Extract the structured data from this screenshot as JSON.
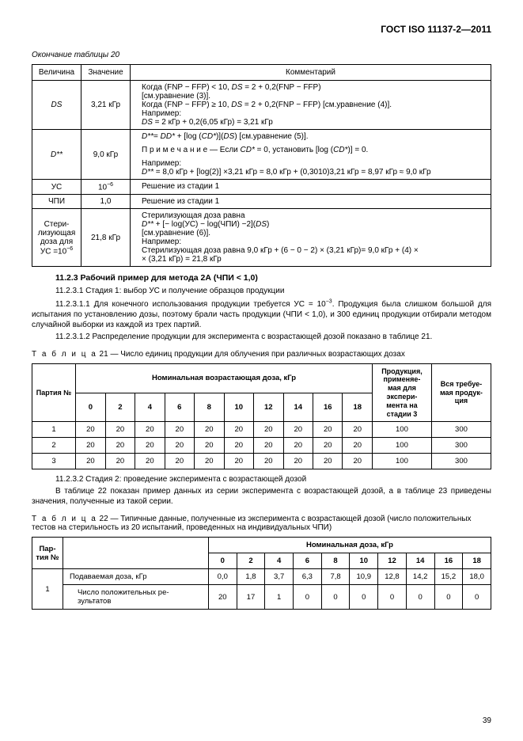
{
  "header": "ГОСТ ISO 11137-2—2011",
  "table20_end_caption": "Окончание таблицы 20",
  "table20": {
    "headers": [
      "Величина",
      "Значение",
      "Комментарий"
    ],
    "rows": [
      {
        "col1": "DS",
        "col1_style": "italic",
        "col2": "3,21 кГр",
        "col3_lines": [
          "Когда (FNP − FFP) < 10, <i>DS</i> = 2 + 0,2(FNP − FFP)",
          "[см.уравнение (3)].",
          "Когда (FNP − FFP) ≥ 10, <i>DS</i> = 2 + 0,2(FNP − FFP) [см.уравнение (4)].",
          "Например:",
          "<i>DS</i> = 2 кГр + 0,2(6,05 кГр) = 3,21 кГр"
        ]
      },
      {
        "col1": "D**",
        "col1_style": "italic",
        "col2": "9,0 кГр",
        "col3_lines": [
          "<i>D**</i>= <i>DD*</i> + [log (<i>CD*</i>)](<i>DS</i>) [см.уравнение (5)].",
          "",
          "П р и м е ч а н и е — Если <i>CD*</i> = 0, установить [log (<i>CD*</i>)] = 0.",
          "",
          "Например:",
          "<i>D**</i> = 8,0 кГр + [log(2)] ×3,21 кГр = 8,0 кГр + (0,3010)3,21 кГр = 8,97 кГр ≈ 9,0 кГр"
        ]
      },
      {
        "col1": "УС",
        "col2_html": "10<sup>−6</sup>",
        "col3_lines": [
          "Решение из стадии 1"
        ]
      },
      {
        "col1": "ЧПИ",
        "col2": "1,0",
        "col3_lines": [
          "Решение из стадии 1"
        ]
      },
      {
        "col1_html": "Стери-<br>лизующая<br>доза для<br>УС =10<sup>−6</sup>",
        "col2": "21,8 кГр",
        "col3_lines": [
          "Стерилизующая доза равна",
          "<i>D**</i> + [− log(УС) − log(ЧПИ) −2](<i>DS</i>)",
          "[см.уравнение (6)].",
          "Например:",
          "Стерилизующая доза равна 9,0 кГр + (6 − 0 − 2) × (3,21 кГр)= 9,0 кГр + (4) ×",
          "× (3,21 кГр) = 21,8 кГр"
        ]
      }
    ]
  },
  "sec_title": "11.2.3  Рабочий пример для метода 2А (ЧПИ < 1,0)",
  "p1": "11.2.3.1  Стадия 1: выбор УС и получение образцов продукции",
  "p2_html": "11.2.3.1.1  Для конечного использования продукции требуется УС = 10<sup>−3</sup>. Продукция была слишком большой для испытания по установлению дозы, поэтому брали часть продукции (ЧПИ < 1,0), и 300 единиц продукции отбирали методом случайной выборки из каждой из трех партий.",
  "p3": "11.2.3.1.2 Распределение продукции для эксперимента с возрастающей дозой показано в таблице 21.",
  "table21_caption_html": "<span class=\"sp\">Т а б л и ц а</span>  21 — Число единиц продукции для облучения при различных возрастающих дозах",
  "table21": {
    "top_header": "Номинальная возрастающая доза, кГр",
    "dose_cols": [
      "0",
      "2",
      "4",
      "6",
      "8",
      "10",
      "12",
      "14",
      "16",
      "18"
    ],
    "col_partiya": "Партия №",
    "col_stage3_html": "Продукция,<br>применяе-<br>мая для<br>экспери-<br>мента на<br>стадии 3",
    "col_total_html": "Вся требуе-<br>мая продук-<br>ция",
    "rows": [
      {
        "n": "1",
        "vals": [
          "20",
          "20",
          "20",
          "20",
          "20",
          "20",
          "20",
          "20",
          "20",
          "20"
        ],
        "s3": "100",
        "tot": "300"
      },
      {
        "n": "2",
        "vals": [
          "20",
          "20",
          "20",
          "20",
          "20",
          "20",
          "20",
          "20",
          "20",
          "20"
        ],
        "s3": "100",
        "tot": "300"
      },
      {
        "n": "3",
        "vals": [
          "20",
          "20",
          "20",
          "20",
          "20",
          "20",
          "20",
          "20",
          "20",
          "20"
        ],
        "s3": "100",
        "tot": "300"
      }
    ]
  },
  "p4": "11.2.3.2  Стадия 2: проведение эксперимента с возрастающей дозой",
  "p5": "В таблице 22 показан пример данных из серии эксперимента с возрастающей дозой, а в таблице 23 приведены значения, полученные из такой серии.",
  "table22_caption_html": "<span class=\"sp\">Т а б л и ц а</span>  22 — Типичные данные, полученные из эксперимента с возрастающей дозой (число положительных тестов на стерильность из 20 испытаний, проведенных на индивидуальных ЧПИ)",
  "table22": {
    "col_partiya_html": "Пар-<br>тия №",
    "top_header": "Номинальная доза, кГр",
    "dose_cols": [
      "0",
      "2",
      "4",
      "6",
      "8",
      "10",
      "12",
      "14",
      "16",
      "18"
    ],
    "label_row": "",
    "rows": [
      {
        "label": "Подаваемая доза, кГр",
        "vals": [
          "0,0",
          "1,8",
          "3,7",
          "6,3",
          "7,8",
          "10,9",
          "12,8",
          "14,2",
          "15,2",
          "18,0"
        ]
      },
      {
        "label_html": "Число положительных ре-<br>зультатов",
        "vals": [
          "20",
          "17",
          "1",
          "0",
          "0",
          "0",
          "0",
          "0",
          "0",
          "0"
        ]
      }
    ],
    "partiya_n": "1"
  },
  "page_number": "39"
}
